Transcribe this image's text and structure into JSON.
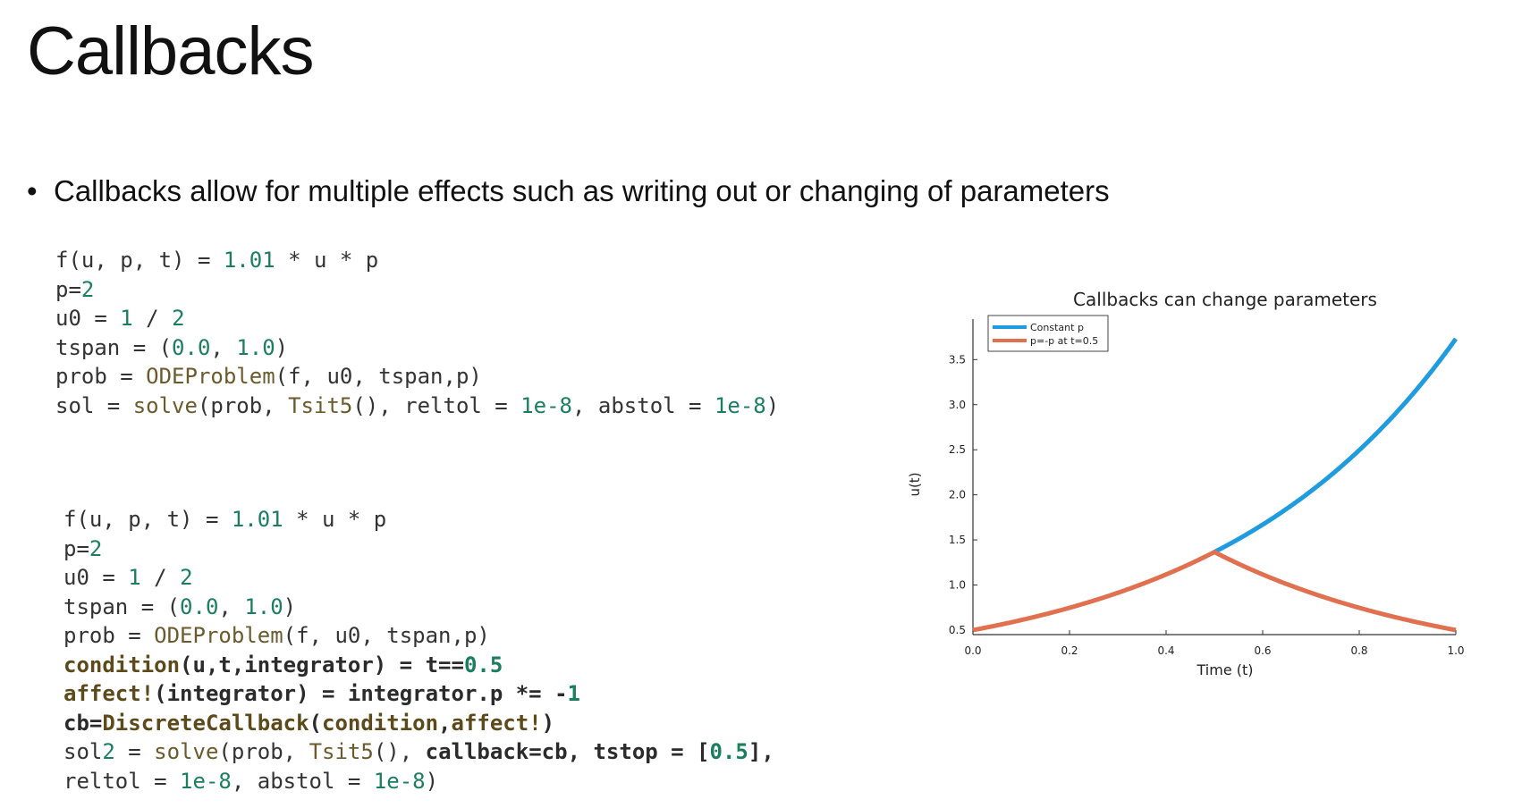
{
  "slide": {
    "title": "Callbacks",
    "bullet": "Callbacks allow for multiple effects such as writing out or changing of parameters"
  },
  "code_block_1": {
    "lines": [
      "f(u, p, t) = 1.01 * u * p",
      "p=2",
      "u0 = 1 / 2",
      "tspan = (0.0, 1.0)",
      "prob = ODEProblem(f, u0, tspan,p)",
      "sol = solve(prob, Tsit5(), reltol = 1e-8, abstol = 1e-8)"
    ]
  },
  "code_block_2": {
    "lines": [
      "f(u, p, t) = 1.01 * u * p",
      "p=2",
      "u0 = 1 / 2",
      "tspan = (0.0, 1.0)",
      "prob = ODEProblem(f, u0, tspan,p)",
      "condition(u,t,integrator) = t==0.5",
      "affect!(integrator) = integrator.p *= -1",
      "cb=DiscreteCallback(condition,affect!)",
      "sol2 = solve(prob, Tsit5(), callback=cb, tstop = [0.5],",
      "reltol = 1e-8, abstol = 1e-8)"
    ]
  },
  "colors": {
    "series_constant": "#1f9be0",
    "series_callback": "#e07050",
    "code_number": "#1b7f5c",
    "code_function": "#6b5a2c"
  },
  "chart_data": {
    "type": "line",
    "title": "Callbacks can change parameters",
    "xlabel": "Time (t)",
    "ylabel": "u(t)",
    "xlim": [
      0.0,
      1.0
    ],
    "ylim": [
      0.45,
      3.85
    ],
    "xticks": [
      "0.0",
      "0.2",
      "0.4",
      "0.6",
      "0.8",
      "1.0"
    ],
    "yticks": [
      "0.5",
      "1.0",
      "1.5",
      "2.0",
      "2.5",
      "3.0",
      "3.5"
    ],
    "grid": false,
    "legend_position": "top-left",
    "series": [
      {
        "name": "Constant p",
        "x": [
          0.0,
          0.1,
          0.2,
          0.3,
          0.4,
          0.5,
          0.6,
          0.7,
          0.8,
          0.9,
          1.0
        ],
        "y": [
          0.5,
          0.61,
          0.75,
          0.91,
          1.12,
          1.37,
          1.67,
          2.04,
          2.5,
          3.05,
          3.73
        ]
      },
      {
        "name": "p=-p at t=0.5",
        "x": [
          0.0,
          0.1,
          0.2,
          0.3,
          0.4,
          0.5,
          0.6,
          0.7,
          0.8,
          0.9,
          1.0
        ],
        "y": [
          0.5,
          0.61,
          0.75,
          0.91,
          1.12,
          1.37,
          1.12,
          0.91,
          0.75,
          0.61,
          0.5
        ]
      }
    ]
  }
}
